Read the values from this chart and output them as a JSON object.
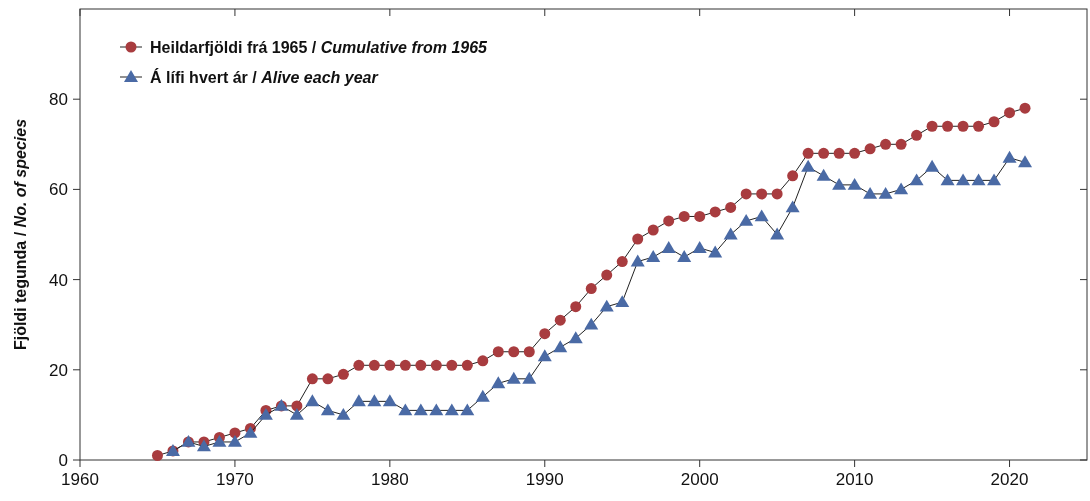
{
  "chart_data": {
    "type": "line",
    "ylabel": "Fjöldi tegunda / No. of species",
    "xlim": [
      1960,
      2025
    ],
    "xticks": [
      1960,
      1970,
      1980,
      1990,
      2000,
      2010,
      2020
    ],
    "ylim": [
      0,
      100
    ],
    "yticks": [
      0,
      20,
      40,
      60,
      80
    ],
    "grid": false,
    "legend": "top left",
    "line_style": "solid",
    "series": [
      {
        "name": "Heildarfjöldi frá 1965 / Cumulative from 1965",
        "color": "#a83c3f",
        "marker": "circle",
        "x": [
          1965,
          1966,
          1967,
          1968,
          1969,
          1970,
          1971,
          1972,
          1973,
          1974,
          1975,
          1976,
          1977,
          1978,
          1979,
          1980,
          1981,
          1982,
          1983,
          1984,
          1985,
          1986,
          1987,
          1988,
          1989,
          1990,
          1991,
          1992,
          1993,
          1994,
          1995,
          1996,
          1997,
          1998,
          1999,
          2000,
          2001,
          2002,
          2003,
          2004,
          2005,
          2006,
          2007,
          2008,
          2009,
          2010,
          2011,
          2012,
          2013,
          2014,
          2015,
          2016,
          2017,
          2018,
          2019,
          2020,
          2021
        ],
        "values": [
          1,
          2,
          4,
          4,
          5,
          6,
          7,
          11,
          12,
          12,
          18,
          18,
          19,
          21,
          21,
          21,
          21,
          21,
          21,
          21,
          21,
          22,
          24,
          24,
          24,
          28,
          31,
          34,
          38,
          41,
          44,
          49,
          51,
          53,
          54,
          54,
          55,
          56,
          59,
          59,
          59,
          63,
          68,
          68,
          68,
          68,
          69,
          70,
          70,
          72,
          74,
          74,
          74,
          74,
          75,
          77,
          78
        ]
      },
      {
        "name": "Á lífi hvert ár / Alive each year",
        "color": "#4a6aa5",
        "marker": "triangle",
        "x": [
          1966,
          1967,
          1968,
          1969,
          1970,
          1971,
          1972,
          1973,
          1974,
          1975,
          1976,
          1977,
          1978,
          1979,
          1980,
          1981,
          1982,
          1983,
          1984,
          1985,
          1986,
          1987,
          1988,
          1989,
          1990,
          1991,
          1992,
          1993,
          1994,
          1995,
          1996,
          1997,
          1998,
          1999,
          2000,
          2001,
          2002,
          2003,
          2004,
          2005,
          2006,
          2007,
          2008,
          2009,
          2010,
          2011,
          2012,
          2013,
          2014,
          2015,
          2016,
          2017,
          2018,
          2019,
          2020,
          2021
        ],
        "values": [
          2,
          4,
          3,
          4,
          4,
          6,
          10,
          12,
          10,
          13,
          11,
          10,
          13,
          13,
          13,
          11,
          11,
          11,
          11,
          11,
          14,
          17,
          18,
          18,
          23,
          25,
          27,
          30,
          34,
          35,
          44,
          45,
          47,
          45,
          47,
          46,
          50,
          53,
          54,
          50,
          56,
          65,
          63,
          61,
          61,
          59,
          59,
          60,
          62,
          65,
          62,
          62,
          62,
          62,
          67,
          66
        ]
      }
    ]
  }
}
